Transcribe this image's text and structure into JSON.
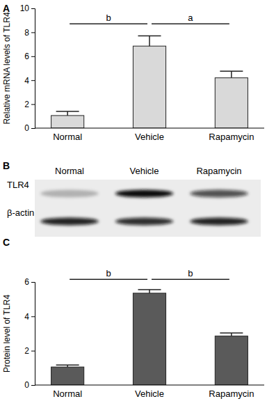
{
  "chart_data": [
    {
      "type": "bar",
      "title": "A",
      "ylabel": "Relative mRNA levels of TLR4",
      "categories": [
        "Normal",
        "Vehicle",
        "Rapamycin"
      ],
      "values": [
        1.05,
        6.85,
        4.2
      ],
      "errors": [
        0.35,
        0.85,
        0.55
      ],
      "color": "#d9d9d9",
      "ylim": [
        0,
        10
      ],
      "yticks": [
        0,
        2,
        4,
        6,
        8,
        10
      ],
      "annotations": [
        {
          "text": "b",
          "from": 0,
          "to": 1
        },
        {
          "text": "a",
          "from": 1,
          "to": 2
        }
      ]
    },
    {
      "type": "blot",
      "title": "B",
      "categories": [
        "Normal",
        "Vehicle",
        "Rapamycin"
      ],
      "series": [
        {
          "name": "TLR4",
          "values": [
            0.25,
            1,
            0.7
          ]
        },
        {
          "name": "β-actin",
          "values": [
            0.9,
            0.85,
            0.9
          ]
        }
      ]
    },
    {
      "type": "bar",
      "title": "C",
      "ylabel": "Protein level of TLR4",
      "categories": [
        "Normal",
        "Vehicle",
        "Rapamycin"
      ],
      "values": [
        1.05,
        5.35,
        2.85
      ],
      "errors": [
        0.12,
        0.2,
        0.18
      ],
      "color": "#5a5a5a",
      "ylim": [
        0,
        6
      ],
      "yticks": [
        0,
        2,
        4,
        6
      ],
      "annotations": [
        {
          "text": "b",
          "from": 0,
          "to": 1
        },
        {
          "text": "b",
          "from": 1,
          "to": 2
        }
      ]
    }
  ]
}
